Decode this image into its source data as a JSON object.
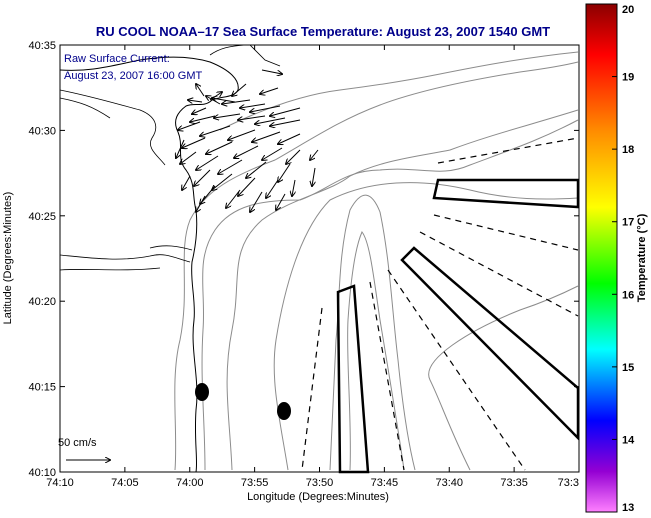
{
  "title": "RU COOL  NOAA–17  Sea Surface Temperature:  August 23, 2007 1540 GMT",
  "overlay": {
    "line1": "Raw Surface Current:",
    "line2": "August 23, 2007 16:00 GMT"
  },
  "scale": {
    "label": "50 cm/s"
  },
  "x_axis": {
    "label": "Longitude (Degrees:Minutes)",
    "ticks": [
      "74:10",
      "74:05",
      "74:00",
      "73:55",
      "73:50",
      "73:45",
      "73:40",
      "73:35",
      "73:3"
    ]
  },
  "y_axis": {
    "label": "Latitude (Degrees:Minutes)",
    "ticks": [
      "40:35",
      "40:30",
      "40:25",
      "40:20",
      "40:15",
      "40:10"
    ]
  },
  "colorbar": {
    "label": "Temperature (°C)",
    "ticks": [
      "20",
      "19",
      "18",
      "17",
      "16",
      "15",
      "14",
      "13"
    ],
    "colors": [
      "#8b0000",
      "#ff0000",
      "#ff8c00",
      "#ffff00",
      "#00ff00",
      "#00ffff",
      "#0000ff",
      "#9400d3",
      "#ff80ff"
    ]
  }
}
